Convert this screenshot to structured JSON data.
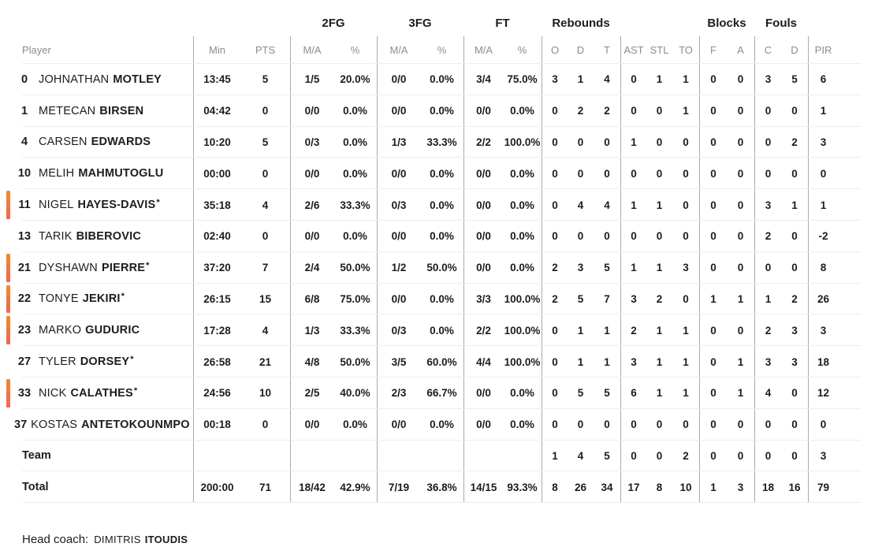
{
  "header": {
    "groups": {
      "fg2": "2FG",
      "fg3": "3FG",
      "ft": "FT",
      "rebounds": "Rebounds",
      "blocks": "Blocks",
      "fouls": "Fouls"
    },
    "sub": {
      "player": "Player",
      "min": "Min",
      "pts": "PTS",
      "ma": "M/A",
      "pct": "%",
      "reb_o": "O",
      "reb_d": "D",
      "reb_t": "T",
      "ast": "AST",
      "stl": "STL",
      "to": "TO",
      "blk_f": "F",
      "blk_a": "A",
      "foul_c": "C",
      "foul_d": "D",
      "pir": "PIR"
    }
  },
  "rows": [
    {
      "num": "0",
      "first": "JOHNATHAN",
      "last": "MOTLEY",
      "star": "",
      "oncourt": false,
      "min": "13:45",
      "pts": "5",
      "fg2": "1/5",
      "fg2p": "20.0%",
      "fg3": "0/0",
      "fg3p": "0.0%",
      "ft": "3/4",
      "ftp": "75.0%",
      "ro": "3",
      "rd": "1",
      "rt": "4",
      "ast": "0",
      "stl": "1",
      "to": "1",
      "bf": "0",
      "ba": "0",
      "fc": "3",
      "fd": "5",
      "pir": "6"
    },
    {
      "num": "1",
      "first": "METECAN",
      "last": "BIRSEN",
      "star": "",
      "oncourt": false,
      "min": "04:42",
      "pts": "0",
      "fg2": "0/0",
      "fg2p": "0.0%",
      "fg3": "0/0",
      "fg3p": "0.0%",
      "ft": "0/0",
      "ftp": "0.0%",
      "ro": "0",
      "rd": "2",
      "rt": "2",
      "ast": "0",
      "stl": "0",
      "to": "1",
      "bf": "0",
      "ba": "0",
      "fc": "0",
      "fd": "0",
      "pir": "1"
    },
    {
      "num": "4",
      "first": "CARSEN",
      "last": "EDWARDS",
      "star": "",
      "oncourt": false,
      "min": "10:20",
      "pts": "5",
      "fg2": "0/3",
      "fg2p": "0.0%",
      "fg3": "1/3",
      "fg3p": "33.3%",
      "ft": "2/2",
      "ftp": "100.0%",
      "ro": "0",
      "rd": "0",
      "rt": "0",
      "ast": "1",
      "stl": "0",
      "to": "0",
      "bf": "0",
      "ba": "0",
      "fc": "0",
      "fd": "2",
      "pir": "3"
    },
    {
      "num": "10",
      "first": "MELIH",
      "last": "MAHMUTOGLU",
      "star": "",
      "oncourt": false,
      "min": "00:00",
      "pts": "0",
      "fg2": "0/0",
      "fg2p": "0.0%",
      "fg3": "0/0",
      "fg3p": "0.0%",
      "ft": "0/0",
      "ftp": "0.0%",
      "ro": "0",
      "rd": "0",
      "rt": "0",
      "ast": "0",
      "stl": "0",
      "to": "0",
      "bf": "0",
      "ba": "0",
      "fc": "0",
      "fd": "0",
      "pir": "0"
    },
    {
      "num": "11",
      "first": "NIGEL",
      "last": "HAYES-DAVIS",
      "star": "*",
      "oncourt": true,
      "min": "35:18",
      "pts": "4",
      "fg2": "2/6",
      "fg2p": "33.3%",
      "fg3": "0/3",
      "fg3p": "0.0%",
      "ft": "0/0",
      "ftp": "0.0%",
      "ro": "0",
      "rd": "4",
      "rt": "4",
      "ast": "1",
      "stl": "1",
      "to": "0",
      "bf": "0",
      "ba": "0",
      "fc": "3",
      "fd": "1",
      "pir": "1"
    },
    {
      "num": "13",
      "first": "TARIK",
      "last": "BIBEROVIC",
      "star": "",
      "oncourt": false,
      "min": "02:40",
      "pts": "0",
      "fg2": "0/0",
      "fg2p": "0.0%",
      "fg3": "0/0",
      "fg3p": "0.0%",
      "ft": "0/0",
      "ftp": "0.0%",
      "ro": "0",
      "rd": "0",
      "rt": "0",
      "ast": "0",
      "stl": "0",
      "to": "0",
      "bf": "0",
      "ba": "0",
      "fc": "2",
      "fd": "0",
      "pir": "-2"
    },
    {
      "num": "21",
      "first": "DYSHAWN",
      "last": "PIERRE",
      "star": "*",
      "oncourt": true,
      "min": "37:20",
      "pts": "7",
      "fg2": "2/4",
      "fg2p": "50.0%",
      "fg3": "1/2",
      "fg3p": "50.0%",
      "ft": "0/0",
      "ftp": "0.0%",
      "ro": "2",
      "rd": "3",
      "rt": "5",
      "ast": "1",
      "stl": "1",
      "to": "3",
      "bf": "0",
      "ba": "0",
      "fc": "0",
      "fd": "0",
      "pir": "8"
    },
    {
      "num": "22",
      "first": "TONYE",
      "last": "JEKIRI",
      "star": "*",
      "oncourt": true,
      "min": "26:15",
      "pts": "15",
      "fg2": "6/8",
      "fg2p": "75.0%",
      "fg3": "0/0",
      "fg3p": "0.0%",
      "ft": "3/3",
      "ftp": "100.0%",
      "ro": "2",
      "rd": "5",
      "rt": "7",
      "ast": "3",
      "stl": "2",
      "to": "0",
      "bf": "1",
      "ba": "1",
      "fc": "1",
      "fd": "2",
      "pir": "26"
    },
    {
      "num": "23",
      "first": "MARKO",
      "last": "GUDURIC",
      "star": "",
      "oncourt": true,
      "min": "17:28",
      "pts": "4",
      "fg2": "1/3",
      "fg2p": "33.3%",
      "fg3": "0/3",
      "fg3p": "0.0%",
      "ft": "2/2",
      "ftp": "100.0%",
      "ro": "0",
      "rd": "1",
      "rt": "1",
      "ast": "2",
      "stl": "1",
      "to": "1",
      "bf": "0",
      "ba": "0",
      "fc": "2",
      "fd": "3",
      "pir": "3"
    },
    {
      "num": "27",
      "first": "TYLER",
      "last": "DORSEY",
      "star": "*",
      "oncourt": false,
      "min": "26:58",
      "pts": "21",
      "fg2": "4/8",
      "fg2p": "50.0%",
      "fg3": "3/5",
      "fg3p": "60.0%",
      "ft": "4/4",
      "ftp": "100.0%",
      "ro": "0",
      "rd": "1",
      "rt": "1",
      "ast": "3",
      "stl": "1",
      "to": "1",
      "bf": "0",
      "ba": "1",
      "fc": "3",
      "fd": "3",
      "pir": "18"
    },
    {
      "num": "33",
      "first": "NICK",
      "last": "CALATHES",
      "star": "*",
      "oncourt": true,
      "min": "24:56",
      "pts": "10",
      "fg2": "2/5",
      "fg2p": "40.0%",
      "fg3": "2/3",
      "fg3p": "66.7%",
      "ft": "0/0",
      "ftp": "0.0%",
      "ro": "0",
      "rd": "5",
      "rt": "5",
      "ast": "6",
      "stl": "1",
      "to": "1",
      "bf": "0",
      "ba": "1",
      "fc": "4",
      "fd": "0",
      "pir": "12"
    },
    {
      "num": "37",
      "first": "KOSTAS",
      "last": "ANTETOKOUNMPO",
      "star": "",
      "oncourt": false,
      "min": "00:18",
      "pts": "0",
      "fg2": "0/0",
      "fg2p": "0.0%",
      "fg3": "0/0",
      "fg3p": "0.0%",
      "ft": "0/0",
      "ftp": "0.0%",
      "ro": "0",
      "rd": "0",
      "rt": "0",
      "ast": "0",
      "stl": "0",
      "to": "0",
      "bf": "0",
      "ba": "0",
      "fc": "0",
      "fd": "0",
      "pir": "0"
    },
    {
      "label": "Team",
      "min": "",
      "pts": "",
      "fg2": "",
      "fg2p": "",
      "fg3": "",
      "fg3p": "",
      "ft": "",
      "ftp": "",
      "ro": "1",
      "rd": "4",
      "rt": "5",
      "ast": "0",
      "stl": "0",
      "to": "2",
      "bf": "0",
      "ba": "0",
      "fc": "0",
      "fd": "0",
      "pir": "3"
    },
    {
      "label": "Total",
      "min": "200:00",
      "pts": "71",
      "fg2": "18/42",
      "fg2p": "42.9%",
      "fg3": "7/19",
      "fg3p": "36.8%",
      "ft": "14/15",
      "ftp": "93.3%",
      "ro": "8",
      "rd": "26",
      "rt": "34",
      "ast": "17",
      "stl": "8",
      "to": "10",
      "bf": "1",
      "ba": "3",
      "fc": "18",
      "fd": "16",
      "pir": "79"
    }
  ],
  "footer": {
    "head_coach_label": "Head coach:",
    "coach_first_name": "DIMITRIS",
    "coach_last_name": "ITOUDIS"
  },
  "colors": {
    "accent_bar_top": "#F78A28",
    "accent_bar_bottom": "#EF6456",
    "text_dark": "#1c1c21",
    "text_gray": "#8b8b94",
    "row_line": "#ededf0",
    "column_line": "#a9a9af"
  }
}
